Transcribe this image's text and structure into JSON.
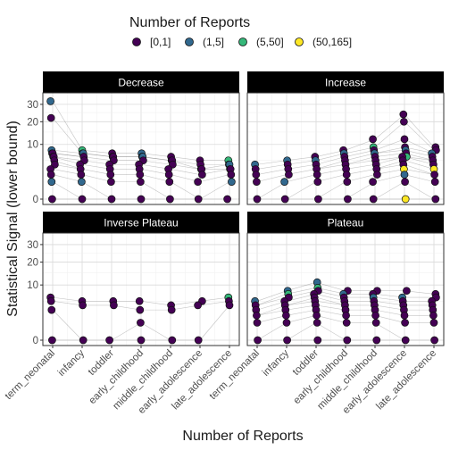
{
  "legend": {
    "title": "Number of Reports",
    "items": [
      {
        "label": "[0,1]",
        "color": "#440154"
      },
      {
        "label": "(1,5]",
        "color": "#31688E"
      },
      {
        "label": "(5,50]",
        "color": "#35B779"
      },
      {
        "label": "(50,165]",
        "color": "#FDE725"
      }
    ]
  },
  "xlabel": "Number of Reports",
  "ylabel": "Statistical Signal (lower bound)",
  "chart_data": {
    "type": "scatter",
    "facets": [
      "Decrease",
      "Increase",
      "Inverse Plateau",
      "Plateau"
    ],
    "x_categories": [
      "term_neonatal",
      "infancy",
      "toddler",
      "early_childhood",
      "middle_childhood",
      "early_adolescence",
      "late_adolescence"
    ],
    "y_ticks": [
      0,
      10,
      20,
      30
    ],
    "y_scale": "sqrt",
    "ylim": [
      0,
      34
    ],
    "grid": true,
    "legend_position": "top",
    "series": [
      {
        "facet": "Decrease",
        "points": [
          [
            0,
            32,
            1
          ],
          [
            0,
            22,
            0
          ],
          [
            0,
            8,
            1
          ],
          [
            0,
            7,
            2
          ],
          [
            0,
            7,
            0
          ],
          [
            0,
            6,
            1
          ],
          [
            0,
            6,
            0
          ],
          [
            0,
            5,
            0
          ],
          [
            0,
            4,
            0
          ],
          [
            0,
            3,
            0
          ],
          [
            0,
            2,
            0
          ],
          [
            0,
            1,
            1
          ],
          [
            0,
            0,
            0
          ],
          [
            1,
            8,
            2
          ],
          [
            1,
            7,
            0
          ],
          [
            1,
            7,
            1
          ],
          [
            1,
            6,
            0
          ],
          [
            1,
            5,
            0
          ],
          [
            1,
            4,
            0
          ],
          [
            1,
            3,
            0
          ],
          [
            1,
            2,
            0
          ],
          [
            1,
            1,
            1
          ],
          [
            1,
            0,
            0
          ],
          [
            2,
            7,
            0
          ],
          [
            2,
            6,
            1
          ],
          [
            2,
            6,
            0
          ],
          [
            2,
            5,
            0
          ],
          [
            2,
            4,
            0
          ],
          [
            2,
            3,
            0
          ],
          [
            2,
            2,
            0
          ],
          [
            2,
            1,
            0
          ],
          [
            2,
            0,
            0
          ],
          [
            3,
            7,
            1
          ],
          [
            3,
            6,
            0
          ],
          [
            3,
            6,
            1
          ],
          [
            3,
            5,
            0
          ],
          [
            3,
            4,
            0
          ],
          [
            3,
            3,
            0
          ],
          [
            3,
            2,
            0
          ],
          [
            3,
            1,
            0
          ],
          [
            3,
            0,
            0
          ],
          [
            4,
            6,
            0
          ],
          [
            4,
            5,
            1
          ],
          [
            4,
            5,
            0
          ],
          [
            4,
            4,
            0
          ],
          [
            4,
            3,
            0
          ],
          [
            4,
            2,
            0
          ],
          [
            4,
            1,
            0
          ],
          [
            4,
            0,
            0
          ],
          [
            5,
            5,
            0
          ],
          [
            5,
            4,
            0
          ],
          [
            5,
            3,
            1
          ],
          [
            5,
            3,
            0
          ],
          [
            5,
            2,
            0
          ],
          [
            5,
            1,
            0
          ],
          [
            5,
            0,
            0
          ],
          [
            6,
            5,
            2
          ],
          [
            6,
            4,
            0
          ],
          [
            6,
            4,
            1
          ],
          [
            6,
            3,
            3
          ],
          [
            6,
            3,
            0
          ],
          [
            6,
            2,
            0
          ],
          [
            6,
            1,
            1
          ],
          [
            6,
            0,
            0
          ]
        ]
      },
      {
        "facet": "Increase",
        "points": [
          [
            0,
            4,
            1
          ],
          [
            0,
            3,
            0
          ],
          [
            0,
            2,
            0
          ],
          [
            0,
            1,
            0
          ],
          [
            0,
            0,
            0
          ],
          [
            1,
            5,
            1
          ],
          [
            1,
            4,
            0
          ],
          [
            1,
            3,
            0
          ],
          [
            1,
            2,
            0
          ],
          [
            1,
            1,
            1
          ],
          [
            1,
            0,
            0
          ],
          [
            2,
            6,
            0
          ],
          [
            2,
            5,
            1
          ],
          [
            2,
            4,
            0
          ],
          [
            2,
            3,
            0
          ],
          [
            2,
            2,
            0
          ],
          [
            2,
            1,
            0
          ],
          [
            2,
            0,
            0
          ],
          [
            3,
            8,
            0
          ],
          [
            3,
            7,
            1
          ],
          [
            3,
            6,
            0
          ],
          [
            3,
            5,
            0
          ],
          [
            3,
            4,
            0
          ],
          [
            3,
            3,
            0
          ],
          [
            3,
            2,
            0
          ],
          [
            3,
            1,
            0
          ],
          [
            3,
            0,
            0
          ],
          [
            4,
            12,
            0
          ],
          [
            4,
            9,
            2
          ],
          [
            4,
            8,
            0
          ],
          [
            4,
            7,
            1
          ],
          [
            4,
            6,
            0
          ],
          [
            4,
            5,
            0
          ],
          [
            4,
            4,
            0
          ],
          [
            4,
            3,
            0
          ],
          [
            4,
            2,
            0
          ],
          [
            4,
            1,
            0
          ],
          [
            4,
            0,
            0
          ],
          [
            5,
            24,
            0
          ],
          [
            5,
            20,
            0
          ],
          [
            5,
            12,
            0
          ],
          [
            5,
            9,
            0
          ],
          [
            5,
            8,
            1
          ],
          [
            5,
            7,
            0
          ],
          [
            5,
            6,
            2
          ],
          [
            5,
            6,
            0
          ],
          [
            5,
            5,
            0
          ],
          [
            5,
            4,
            0
          ],
          [
            5,
            3,
            3
          ],
          [
            5,
            2,
            1
          ],
          [
            5,
            1,
            0
          ],
          [
            5,
            0,
            3
          ],
          [
            6,
            9,
            0
          ],
          [
            6,
            8,
            0
          ],
          [
            6,
            7,
            1
          ],
          [
            6,
            6,
            0
          ],
          [
            6,
            5,
            0
          ],
          [
            6,
            4,
            0
          ],
          [
            6,
            3,
            3
          ],
          [
            6,
            2,
            0
          ],
          [
            6,
            1,
            0
          ],
          [
            6,
            0,
            0
          ]
        ]
      },
      {
        "facet": "Inverse Plateau",
        "points": [
          [
            0,
            6,
            0
          ],
          [
            0,
            5,
            0
          ],
          [
            0,
            3,
            0
          ],
          [
            0,
            0,
            0
          ],
          [
            1,
            5,
            0
          ],
          [
            1,
            4,
            0
          ],
          [
            1,
            0,
            0
          ],
          [
            2,
            5,
            0
          ],
          [
            2,
            4,
            0
          ],
          [
            2,
            0,
            0
          ],
          [
            3,
            5,
            0
          ],
          [
            3,
            3,
            0
          ],
          [
            3,
            1,
            0
          ],
          [
            3,
            0,
            0
          ],
          [
            4,
            4,
            0
          ],
          [
            4,
            3,
            0
          ],
          [
            4,
            0,
            0
          ],
          [
            5,
            5,
            0
          ],
          [
            5,
            4,
            0
          ],
          [
            5,
            0,
            0
          ],
          [
            6,
            6,
            2
          ],
          [
            6,
            5,
            0
          ],
          [
            6,
            4,
            0
          ]
        ]
      },
      {
        "facet": "Plateau",
        "points": [
          [
            0,
            5,
            1
          ],
          [
            0,
            4,
            0
          ],
          [
            0,
            3,
            0
          ],
          [
            0,
            2,
            0
          ],
          [
            0,
            1,
            0
          ],
          [
            0,
            0,
            0
          ],
          [
            1,
            8,
            1
          ],
          [
            1,
            7,
            2
          ],
          [
            1,
            6,
            0
          ],
          [
            1,
            5,
            0
          ],
          [
            1,
            4,
            0
          ],
          [
            1,
            3,
            0
          ],
          [
            1,
            2,
            0
          ],
          [
            1,
            1,
            0
          ],
          [
            1,
            0,
            0
          ],
          [
            2,
            11,
            1
          ],
          [
            2,
            9,
            2
          ],
          [
            2,
            8,
            0
          ],
          [
            2,
            7,
            0
          ],
          [
            2,
            6,
            0
          ],
          [
            2,
            5,
            0
          ],
          [
            2,
            4,
            0
          ],
          [
            2,
            3,
            0
          ],
          [
            2,
            2,
            0
          ],
          [
            2,
            1,
            0
          ],
          [
            2,
            0,
            0
          ],
          [
            3,
            8,
            0
          ],
          [
            3,
            7,
            1
          ],
          [
            3,
            6,
            0
          ],
          [
            3,
            5,
            0
          ],
          [
            3,
            4,
            0
          ],
          [
            3,
            3,
            0
          ],
          [
            3,
            2,
            0
          ],
          [
            3,
            1,
            0
          ],
          [
            3,
            0,
            0
          ],
          [
            4,
            8,
            0
          ],
          [
            4,
            7,
            0
          ],
          [
            4,
            6,
            1
          ],
          [
            4,
            5,
            0
          ],
          [
            4,
            4,
            0
          ],
          [
            4,
            3,
            0
          ],
          [
            4,
            2,
            0
          ],
          [
            4,
            1,
            0
          ],
          [
            4,
            0,
            0
          ],
          [
            5,
            8,
            0
          ],
          [
            5,
            6,
            1
          ],
          [
            5,
            5,
            0
          ],
          [
            5,
            4,
            0
          ],
          [
            5,
            3,
            0
          ],
          [
            5,
            2,
            0
          ],
          [
            5,
            1,
            0
          ],
          [
            5,
            0,
            0
          ],
          [
            6,
            7,
            0
          ],
          [
            6,
            6,
            0
          ],
          [
            6,
            5,
            0
          ],
          [
            6,
            4,
            0
          ],
          [
            6,
            3,
            0
          ],
          [
            6,
            2,
            0
          ],
          [
            6,
            1,
            0
          ],
          [
            6,
            0,
            0
          ]
        ]
      }
    ]
  }
}
